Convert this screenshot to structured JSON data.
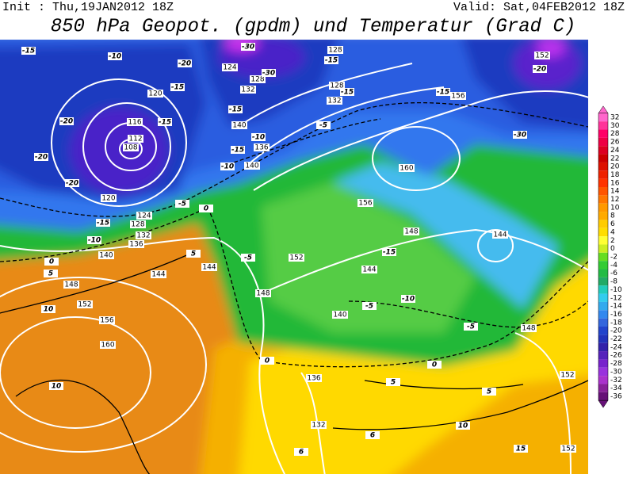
{
  "header": {
    "init": "Init : Thu,19JAN2012 18Z",
    "valid": "Valid: Sat,04FEB2012 18Z",
    "title": "850 hPa Geopot. (gpdm) und Temperatur (Grad C)"
  },
  "colorbar": {
    "levels": [
      32,
      30,
      28,
      26,
      24,
      22,
      20,
      18,
      16,
      14,
      12,
      10,
      8,
      6,
      4,
      2,
      0,
      -2,
      -4,
      -6,
      -8,
      -10,
      -12,
      -14,
      -16,
      -18,
      -20,
      -22,
      -24,
      -26,
      -28,
      -30,
      -32,
      -34,
      -36
    ],
    "colors": [
      "#ff66cc",
      "#ff3399",
      "#ff0066",
      "#ee0044",
      "#dd0022",
      "#cc0000",
      "#dd1100",
      "#ee2200",
      "#ff3300",
      "#ff5500",
      "#ff7700",
      "#ff9900",
      "#ffaa00",
      "#ffcc00",
      "#ffdd00",
      "#ffff33",
      "#ccee22",
      "#66dd22",
      "#33cc33",
      "#22bb44",
      "#22aa66",
      "#22ccbb",
      "#33ccee",
      "#33aaee",
      "#3388ee",
      "#3366dd",
      "#2244cc",
      "#2233bb",
      "#3322aa",
      "#5522bb",
      "#7722cc",
      "#9933dd",
      "#aa33cc",
      "#882299",
      "#661177"
    ]
  },
  "height_labels": [
    128,
    124,
    128,
    132,
    128,
    132,
    120,
    116,
    112,
    108,
    140,
    136,
    140,
    152,
    156,
    160,
    156,
    120,
    124,
    128,
    132,
    136,
    140,
    144,
    144,
    148,
    152,
    156,
    160,
    148,
    152,
    148,
    144,
    140,
    144,
    148,
    152,
    136,
    132,
    152
  ],
  "temperature_labels": [
    -15,
    -10,
    -30,
    -20,
    -30,
    -15,
    -15,
    -15,
    -15,
    -20,
    -15,
    -20,
    -20,
    -10,
    -15,
    -5,
    -10,
    -15,
    -20,
    -30,
    -5,
    0,
    -15,
    -10,
    0,
    5,
    5,
    -5,
    -15,
    -5,
    -10,
    -5,
    0,
    10,
    10,
    5,
    5,
    10,
    6,
    6,
    15,
    0
  ]
}
